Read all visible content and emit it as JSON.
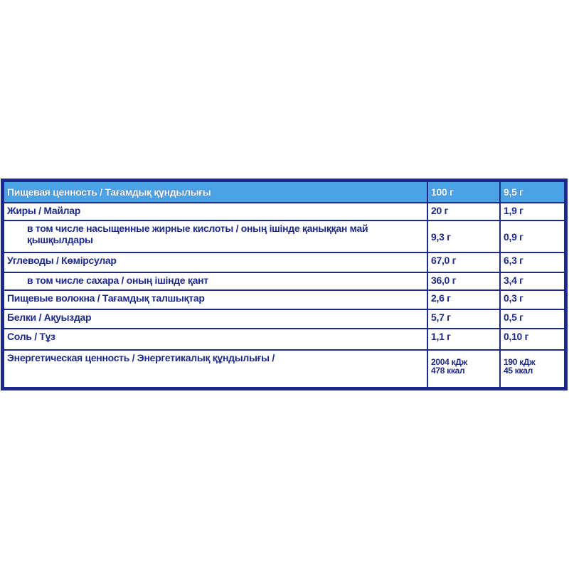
{
  "table": {
    "header": [
      "Пищевая ценность / Тағамдық құндылығы",
      "100 г",
      "9,5 г"
    ],
    "rows": [
      [
        "Жиры / Майлар",
        "20 г",
        "1,9 г"
      ],
      [
        "в том числе насыщенные жирные кислоты / оның ішінде қаныққан май қышқылдары",
        "9,3 г",
        "0,9 г"
      ],
      [
        "Углеводы / Көмірсулар",
        "67,0 г",
        "6,3 г"
      ],
      [
        "в том числе сахара / оның ішінде қант",
        "36,0 г",
        "3,4 г"
      ],
      [
        "Пищевые волокна / Тағамдық талшықтар",
        "2,6 г",
        "0,3 г"
      ],
      [
        "Белки / Ақуыздар",
        "5,7 г",
        "0,5 г"
      ],
      [
        "Соль / Тұз",
        "1,1 г",
        "0,10 г"
      ],
      [
        "Энергетическая ценность / Энергетикалық құндылығы /",
        [
          "2004 кДж",
          "478 ккал"
        ],
        [
          "190 кДж",
          "45 ккал"
        ]
      ]
    ]
  }
}
